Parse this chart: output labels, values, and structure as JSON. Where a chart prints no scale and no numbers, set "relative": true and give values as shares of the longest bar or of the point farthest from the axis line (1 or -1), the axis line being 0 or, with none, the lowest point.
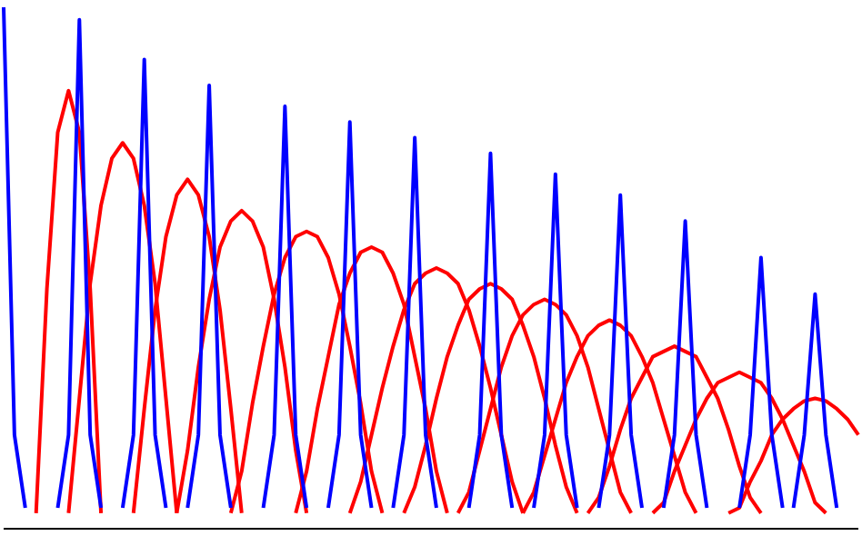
{
  "chart_data": {
    "type": "line",
    "relative": true,
    "grid": false,
    "legend": false,
    "categories": [
      null,
      null,
      null,
      null,
      null,
      null,
      null,
      null,
      null,
      null,
      null,
      null,
      null,
      null,
      null,
      null,
      null,
      null,
      null,
      null,
      null,
      null,
      null,
      null,
      null,
      null,
      null,
      null,
      null,
      null,
      null,
      null,
      null,
      null,
      null,
      null,
      null,
      null,
      null,
      null,
      null,
      null,
      null,
      null,
      null,
      null,
      null,
      null,
      null,
      null,
      null,
      null,
      null,
      null,
      null,
      null,
      null,
      null,
      null,
      null,
      null,
      null,
      null,
      null,
      null,
      null,
      null,
      null,
      null,
      null,
      null,
      null,
      null,
      null,
      null,
      null,
      null,
      null,
      null,
      null
    ],
    "series": [
      {
        "color": "#ff0000",
        "values": [
          null,
          null,
          null,
          0.03,
          0.46,
          0.76,
          0.84,
          0.76,
          0.46,
          0.03,
          null,
          null,
          null,
          null,
          null,
          null,
          null,
          null,
          null,
          null,
          null,
          null,
          null,
          null,
          null,
          null,
          null,
          null,
          null,
          null,
          null,
          null,
          null,
          null,
          null,
          null,
          null,
          null,
          null,
          null,
          null,
          null,
          null,
          null,
          null,
          null,
          null,
          null,
          null,
          null,
          null,
          null,
          null,
          null,
          null,
          null,
          null,
          null,
          null,
          null,
          null,
          null,
          null,
          null,
          null,
          null,
          null,
          null,
          null,
          null,
          null,
          null,
          null,
          null,
          null,
          null,
          null,
          null,
          null,
          null
        ]
      },
      {
        "color": "#ff0000",
        "values": [
          null,
          null,
          null,
          null,
          null,
          null,
          0.03,
          0.25,
          0.47,
          0.62,
          0.71,
          0.74,
          0.71,
          0.62,
          0.47,
          0.25,
          0.03,
          null,
          null,
          null,
          null,
          null,
          null,
          null,
          null,
          null,
          null,
          null,
          null,
          null,
          null,
          null,
          null,
          null,
          null,
          null,
          null,
          null,
          null,
          null,
          null,
          null,
          null,
          null,
          null,
          null,
          null,
          null,
          null,
          null,
          null,
          null,
          null,
          null,
          null,
          null,
          null,
          null,
          null,
          null,
          null,
          null,
          null,
          null,
          null,
          null,
          null,
          null,
          null,
          null,
          null,
          null,
          null,
          null,
          null,
          null,
          null,
          null,
          null,
          null
        ]
      },
      {
        "color": "#ff0000",
        "values": [
          null,
          null,
          null,
          null,
          null,
          null,
          null,
          null,
          null,
          null,
          null,
          null,
          0.03,
          0.23,
          0.42,
          0.56,
          0.64,
          0.67,
          0.64,
          0.56,
          0.42,
          0.23,
          0.03,
          null,
          null,
          null,
          null,
          null,
          null,
          null,
          null,
          null,
          null,
          null,
          null,
          null,
          null,
          null,
          null,
          null,
          null,
          null,
          null,
          null,
          null,
          null,
          null,
          null,
          null,
          null,
          null,
          null,
          null,
          null,
          null,
          null,
          null,
          null,
          null,
          null,
          null,
          null,
          null,
          null,
          null,
          null,
          null,
          null,
          null,
          null,
          null,
          null,
          null,
          null,
          null,
          null,
          null,
          null,
          null,
          null
        ]
      },
      {
        "color": "#ff0000",
        "values": [
          null,
          null,
          null,
          null,
          null,
          null,
          null,
          null,
          null,
          null,
          null,
          null,
          null,
          null,
          null,
          null,
          0.03,
          0.15,
          0.31,
          0.44,
          0.54,
          0.59,
          0.61,
          0.59,
          0.54,
          0.44,
          0.31,
          0.15,
          0.03,
          null,
          null,
          null,
          null,
          null,
          null,
          null,
          null,
          null,
          null,
          null,
          null,
          null,
          null,
          null,
          null,
          null,
          null,
          null,
          null,
          null,
          null,
          null,
          null,
          null,
          null,
          null,
          null,
          null,
          null,
          null,
          null,
          null,
          null,
          null,
          null,
          null,
          null,
          null,
          null,
          null,
          null,
          null,
          null,
          null,
          null,
          null,
          null,
          null,
          null,
          null
        ]
      },
      {
        "color": "#ff0000",
        "values": [
          null,
          null,
          null,
          null,
          null,
          null,
          null,
          null,
          null,
          null,
          null,
          null,
          null,
          null,
          null,
          null,
          null,
          null,
          null,
          null,
          null,
          0.03,
          0.11,
          0.24,
          0.35,
          0.45,
          0.52,
          0.56,
          0.57,
          0.56,
          0.52,
          0.45,
          0.35,
          0.24,
          0.11,
          0.03,
          null,
          null,
          null,
          null,
          null,
          null,
          null,
          null,
          null,
          null,
          null,
          null,
          null,
          null,
          null,
          null,
          null,
          null,
          null,
          null,
          null,
          null,
          null,
          null,
          null,
          null,
          null,
          null,
          null,
          null,
          null,
          null,
          null,
          null,
          null,
          null,
          null,
          null,
          null,
          null,
          null,
          null,
          null,
          null
        ]
      },
      {
        "color": "#ff0000",
        "values": [
          null,
          null,
          null,
          null,
          null,
          null,
          null,
          null,
          null,
          null,
          null,
          null,
          null,
          null,
          null,
          null,
          null,
          null,
          null,
          null,
          null,
          null,
          null,
          null,
          null,
          null,
          null,
          0.03,
          0.11,
          0.23,
          0.33,
          0.43,
          0.49,
          0.53,
          0.54,
          0.53,
          0.49,
          0.43,
          0.33,
          0.23,
          0.11,
          0.03,
          null,
          null,
          null,
          null,
          null,
          null,
          null,
          null,
          null,
          null,
          null,
          null,
          null,
          null,
          null,
          null,
          null,
          null,
          null,
          null,
          null,
          null,
          null,
          null,
          null,
          null,
          null,
          null,
          null,
          null,
          null,
          null,
          null,
          null,
          null,
          null,
          null,
          null
        ]
      },
      {
        "color": "#ff0000",
        "values": [
          null,
          null,
          null,
          null,
          null,
          null,
          null,
          null,
          null,
          null,
          null,
          null,
          null,
          null,
          null,
          null,
          null,
          null,
          null,
          null,
          null,
          null,
          null,
          null,
          null,
          null,
          null,
          null,
          null,
          null,
          null,
          null,
          0.03,
          0.09,
          0.18,
          0.27,
          0.35,
          0.42,
          0.47,
          0.49,
          0.5,
          0.49,
          0.47,
          0.42,
          0.35,
          0.27,
          0.18,
          0.09,
          0.03,
          null,
          null,
          null,
          null,
          null,
          null,
          null,
          null,
          null,
          null,
          null,
          null,
          null,
          null,
          null,
          null,
          null,
          null,
          null,
          null,
          null,
          null,
          null,
          null,
          null,
          null,
          null,
          null,
          null,
          null,
          null
        ]
      },
      {
        "color": "#ff0000",
        "values": [
          null,
          null,
          null,
          null,
          null,
          null,
          null,
          null,
          null,
          null,
          null,
          null,
          null,
          null,
          null,
          null,
          null,
          null,
          null,
          null,
          null,
          null,
          null,
          null,
          null,
          null,
          null,
          null,
          null,
          null,
          null,
          null,
          null,
          null,
          null,
          null,
          null,
          0.03,
          0.08,
          0.16,
          0.25,
          0.33,
          0.39,
          0.44,
          0.46,
          0.47,
          0.46,
          0.44,
          0.39,
          0.33,
          0.25,
          0.16,
          0.08,
          0.03,
          null,
          null,
          null,
          null,
          null,
          null,
          null,
          null,
          null,
          null,
          null,
          null,
          null,
          null,
          null,
          null,
          null,
          null,
          null,
          null,
          null,
          null,
          null,
          null,
          null,
          null
        ]
      },
      {
        "color": "#ff0000",
        "values": [
          null,
          null,
          null,
          null,
          null,
          null,
          null,
          null,
          null,
          null,
          null,
          null,
          null,
          null,
          null,
          null,
          null,
          null,
          null,
          null,
          null,
          null,
          null,
          null,
          null,
          null,
          null,
          null,
          null,
          null,
          null,
          null,
          null,
          null,
          null,
          null,
          null,
          null,
          null,
          null,
          null,
          null,
          0.03,
          0.07,
          0.15,
          0.23,
          0.31,
          0.37,
          0.41,
          0.43,
          0.44,
          0.43,
          0.41,
          0.37,
          0.31,
          0.23,
          0.15,
          0.07,
          0.03,
          null,
          null,
          null,
          null,
          null,
          null,
          null,
          null,
          null,
          null,
          null,
          null,
          null,
          null,
          null,
          null,
          null,
          null,
          null,
          null,
          null
        ]
      },
      {
        "color": "#ff0000",
        "values": [
          null,
          null,
          null,
          null,
          null,
          null,
          null,
          null,
          null,
          null,
          null,
          null,
          null,
          null,
          null,
          null,
          null,
          null,
          null,
          null,
          null,
          null,
          null,
          null,
          null,
          null,
          null,
          null,
          null,
          null,
          null,
          null,
          null,
          null,
          null,
          null,
          null,
          null,
          null,
          null,
          null,
          null,
          null,
          null,
          null,
          null,
          null,
          null,
          0.03,
          0.07,
          0.14,
          0.21,
          0.28,
          0.33,
          0.37,
          0.39,
          0.4,
          0.39,
          0.37,
          0.33,
          0.28,
          0.21,
          0.14,
          0.07,
          0.03,
          null,
          null,
          null,
          null,
          null,
          null,
          null,
          null,
          null,
          null,
          null,
          null,
          null,
          null,
          null
        ]
      },
      {
        "color": "#ff0000",
        "values": [
          null,
          null,
          null,
          null,
          null,
          null,
          null,
          null,
          null,
          null,
          null,
          null,
          null,
          null,
          null,
          null,
          null,
          null,
          null,
          null,
          null,
          null,
          null,
          null,
          null,
          null,
          null,
          null,
          null,
          null,
          null,
          null,
          null,
          null,
          null,
          null,
          null,
          null,
          null,
          null,
          null,
          null,
          null,
          null,
          null,
          null,
          null,
          null,
          null,
          null,
          null,
          null,
          null,
          null,
          0.03,
          0.06,
          0.12,
          0.19,
          0.25,
          0.29,
          0.33,
          0.34,
          0.35,
          0.34,
          0.33,
          0.29,
          0.25,
          0.19,
          0.12,
          0.06,
          0.03,
          null,
          null,
          null,
          null,
          null,
          null,
          null,
          null,
          null
        ]
      },
      {
        "color": "#ff0000",
        "values": [
          null,
          null,
          null,
          null,
          null,
          null,
          null,
          null,
          null,
          null,
          null,
          null,
          null,
          null,
          null,
          null,
          null,
          null,
          null,
          null,
          null,
          null,
          null,
          null,
          null,
          null,
          null,
          null,
          null,
          null,
          null,
          null,
          null,
          null,
          null,
          null,
          null,
          null,
          null,
          null,
          null,
          null,
          null,
          null,
          null,
          null,
          null,
          null,
          null,
          null,
          null,
          null,
          null,
          null,
          null,
          null,
          null,
          null,
          null,
          null,
          0.03,
          0.05,
          0.11,
          0.16,
          0.21,
          0.25,
          0.28,
          0.29,
          0.3,
          0.29,
          0.28,
          0.25,
          0.21,
          0.16,
          0.11,
          0.05,
          0.03,
          null,
          null,
          null
        ]
      },
      {
        "color": "#ff0000",
        "values": [
          null,
          null,
          null,
          null,
          null,
          null,
          null,
          null,
          null,
          null,
          null,
          null,
          null,
          null,
          null,
          null,
          null,
          null,
          null,
          null,
          null,
          null,
          null,
          null,
          null,
          null,
          null,
          null,
          null,
          null,
          null,
          null,
          null,
          null,
          null,
          null,
          null,
          null,
          null,
          null,
          null,
          null,
          null,
          null,
          null,
          null,
          null,
          null,
          null,
          null,
          null,
          null,
          null,
          null,
          null,
          null,
          null,
          null,
          null,
          null,
          null,
          null,
          null,
          null,
          null,
          null,
          null,
          0.03,
          0.04,
          0.09,
          0.13,
          0.18,
          0.21,
          0.23,
          0.245,
          0.25,
          0.245,
          0.23,
          0.21,
          0.18
        ]
      },
      {
        "color": "#0000ff",
        "values": [
          1.0,
          0.18,
          0.04,
          null,
          null,
          null,
          null,
          null,
          null,
          null,
          null,
          null,
          null,
          null,
          null,
          null,
          null,
          null,
          null,
          null,
          null,
          null,
          null,
          null,
          null,
          null,
          null,
          null,
          null,
          null,
          null,
          null,
          null,
          null,
          null,
          null,
          null,
          null,
          null,
          null,
          null,
          null,
          null,
          null,
          null,
          null,
          null,
          null,
          null,
          null,
          null,
          null,
          null,
          null,
          null,
          null,
          null,
          null,
          null,
          null,
          null,
          null,
          null,
          null,
          null,
          null,
          null,
          null,
          null,
          null,
          null,
          null,
          null,
          null,
          null,
          null,
          null,
          null,
          null,
          null
        ]
      },
      {
        "color": "#0000ff",
        "values": [
          null,
          null,
          null,
          null,
          null,
          0.04,
          0.18,
          0.976,
          0.18,
          0.04,
          null,
          null,
          null,
          null,
          null,
          null,
          null,
          null,
          null,
          null,
          null,
          null,
          null,
          null,
          null,
          null,
          null,
          null,
          null,
          null,
          null,
          null,
          null,
          null,
          null,
          null,
          null,
          null,
          null,
          null,
          null,
          null,
          null,
          null,
          null,
          null,
          null,
          null,
          null,
          null,
          null,
          null,
          null,
          null,
          null,
          null,
          null,
          null,
          null,
          null,
          null,
          null,
          null,
          null,
          null,
          null,
          null,
          null,
          null,
          null,
          null,
          null,
          null,
          null,
          null,
          null,
          null,
          null,
          null,
          null
        ]
      },
      {
        "color": "#0000ff",
        "values": [
          null,
          null,
          null,
          null,
          null,
          null,
          null,
          null,
          null,
          null,
          null,
          0.04,
          0.18,
          0.9,
          0.18,
          0.04,
          null,
          null,
          null,
          null,
          null,
          null,
          null,
          null,
          null,
          null,
          null,
          null,
          null,
          null,
          null,
          null,
          null,
          null,
          null,
          null,
          null,
          null,
          null,
          null,
          null,
          null,
          null,
          null,
          null,
          null,
          null,
          null,
          null,
          null,
          null,
          null,
          null,
          null,
          null,
          null,
          null,
          null,
          null,
          null,
          null,
          null,
          null,
          null,
          null,
          null,
          null,
          null,
          null,
          null,
          null,
          null,
          null,
          null,
          null,
          null,
          null,
          null,
          null,
          null
        ]
      },
      {
        "color": "#0000ff",
        "values": [
          null,
          null,
          null,
          null,
          null,
          null,
          null,
          null,
          null,
          null,
          null,
          null,
          null,
          null,
          null,
          null,
          null,
          0.04,
          0.18,
          0.85,
          0.18,
          0.04,
          null,
          null,
          null,
          null,
          null,
          null,
          null,
          null,
          null,
          null,
          null,
          null,
          null,
          null,
          null,
          null,
          null,
          null,
          null,
          null,
          null,
          null,
          null,
          null,
          null,
          null,
          null,
          null,
          null,
          null,
          null,
          null,
          null,
          null,
          null,
          null,
          null,
          null,
          null,
          null,
          null,
          null,
          null,
          null,
          null,
          null,
          null,
          null,
          null,
          null,
          null,
          null,
          null,
          null,
          null,
          null,
          null,
          null
        ]
      },
      {
        "color": "#0000ff",
        "values": [
          null,
          null,
          null,
          null,
          null,
          null,
          null,
          null,
          null,
          null,
          null,
          null,
          null,
          null,
          null,
          null,
          null,
          null,
          null,
          null,
          null,
          null,
          null,
          null,
          0.04,
          0.18,
          0.81,
          0.18,
          0.04,
          null,
          null,
          null,
          null,
          null,
          null,
          null,
          null,
          null,
          null,
          null,
          null,
          null,
          null,
          null,
          null,
          null,
          null,
          null,
          null,
          null,
          null,
          null,
          null,
          null,
          null,
          null,
          null,
          null,
          null,
          null,
          null,
          null,
          null,
          null,
          null,
          null,
          null,
          null,
          null,
          null,
          null,
          null,
          null,
          null,
          null,
          null,
          null,
          null,
          null,
          null
        ]
      },
      {
        "color": "#0000ff",
        "values": [
          null,
          null,
          null,
          null,
          null,
          null,
          null,
          null,
          null,
          null,
          null,
          null,
          null,
          null,
          null,
          null,
          null,
          null,
          null,
          null,
          null,
          null,
          null,
          null,
          null,
          null,
          null,
          null,
          null,
          null,
          0.04,
          0.18,
          0.78,
          0.18,
          0.04,
          null,
          null,
          null,
          null,
          null,
          null,
          null,
          null,
          null,
          null,
          null,
          null,
          null,
          null,
          null,
          null,
          null,
          null,
          null,
          null,
          null,
          null,
          null,
          null,
          null,
          null,
          null,
          null,
          null,
          null,
          null,
          null,
          null,
          null,
          null,
          null,
          null,
          null,
          null,
          null,
          null,
          null,
          null,
          null,
          null
        ]
      },
      {
        "color": "#0000ff",
        "values": [
          null,
          null,
          null,
          null,
          null,
          null,
          null,
          null,
          null,
          null,
          null,
          null,
          null,
          null,
          null,
          null,
          null,
          null,
          null,
          null,
          null,
          null,
          null,
          null,
          null,
          null,
          null,
          null,
          null,
          null,
          null,
          null,
          null,
          null,
          null,
          null,
          0.04,
          0.18,
          0.75,
          0.18,
          0.04,
          null,
          null,
          null,
          null,
          null,
          null,
          null,
          null,
          null,
          null,
          null,
          null,
          null,
          null,
          null,
          null,
          null,
          null,
          null,
          null,
          null,
          null,
          null,
          null,
          null,
          null,
          null,
          null,
          null,
          null,
          null,
          null,
          null,
          null,
          null,
          null,
          null,
          null,
          null
        ]
      },
      {
        "color": "#0000ff",
        "values": [
          null,
          null,
          null,
          null,
          null,
          null,
          null,
          null,
          null,
          null,
          null,
          null,
          null,
          null,
          null,
          null,
          null,
          null,
          null,
          null,
          null,
          null,
          null,
          null,
          null,
          null,
          null,
          null,
          null,
          null,
          null,
          null,
          null,
          null,
          null,
          null,
          null,
          null,
          null,
          null,
          null,
          null,
          null,
          0.04,
          0.18,
          0.72,
          0.18,
          0.04,
          null,
          null,
          null,
          null,
          null,
          null,
          null,
          null,
          null,
          null,
          null,
          null,
          null,
          null,
          null,
          null,
          null,
          null,
          null,
          null,
          null,
          null,
          null,
          null,
          null,
          null,
          null,
          null,
          null,
          null,
          null,
          null
        ]
      },
      {
        "color": "#0000ff",
        "values": [
          null,
          null,
          null,
          null,
          null,
          null,
          null,
          null,
          null,
          null,
          null,
          null,
          null,
          null,
          null,
          null,
          null,
          null,
          null,
          null,
          null,
          null,
          null,
          null,
          null,
          null,
          null,
          null,
          null,
          null,
          null,
          null,
          null,
          null,
          null,
          null,
          null,
          null,
          null,
          null,
          null,
          null,
          null,
          null,
          null,
          null,
          null,
          null,
          null,
          0.04,
          0.18,
          0.68,
          0.18,
          0.04,
          null,
          null,
          null,
          null,
          null,
          null,
          null,
          null,
          null,
          null,
          null,
          null,
          null,
          null,
          null,
          null,
          null,
          null,
          null,
          null,
          null,
          null,
          null,
          null,
          null,
          null
        ]
      },
      {
        "color": "#0000ff",
        "values": [
          null,
          null,
          null,
          null,
          null,
          null,
          null,
          null,
          null,
          null,
          null,
          null,
          null,
          null,
          null,
          null,
          null,
          null,
          null,
          null,
          null,
          null,
          null,
          null,
          null,
          null,
          null,
          null,
          null,
          null,
          null,
          null,
          null,
          null,
          null,
          null,
          null,
          null,
          null,
          null,
          null,
          null,
          null,
          null,
          null,
          null,
          null,
          null,
          null,
          null,
          null,
          null,
          null,
          null,
          null,
          0.04,
          0.18,
          0.64,
          0.18,
          0.04,
          null,
          null,
          null,
          null,
          null,
          null,
          null,
          null,
          null,
          null,
          null,
          null,
          null,
          null,
          null,
          null,
          null,
          null,
          null,
          null
        ]
      },
      {
        "color": "#0000ff",
        "values": [
          null,
          null,
          null,
          null,
          null,
          null,
          null,
          null,
          null,
          null,
          null,
          null,
          null,
          null,
          null,
          null,
          null,
          null,
          null,
          null,
          null,
          null,
          null,
          null,
          null,
          null,
          null,
          null,
          null,
          null,
          null,
          null,
          null,
          null,
          null,
          null,
          null,
          null,
          null,
          null,
          null,
          null,
          null,
          null,
          null,
          null,
          null,
          null,
          null,
          null,
          null,
          null,
          null,
          null,
          null,
          null,
          null,
          null,
          null,
          null,
          null,
          0.04,
          0.18,
          0.59,
          0.18,
          0.04,
          null,
          null,
          null,
          null,
          null,
          null,
          null,
          null,
          null,
          null,
          null,
          null,
          null,
          null
        ]
      },
      {
        "color": "#0000ff",
        "values": [
          null,
          null,
          null,
          null,
          null,
          null,
          null,
          null,
          null,
          null,
          null,
          null,
          null,
          null,
          null,
          null,
          null,
          null,
          null,
          null,
          null,
          null,
          null,
          null,
          null,
          null,
          null,
          null,
          null,
          null,
          null,
          null,
          null,
          null,
          null,
          null,
          null,
          null,
          null,
          null,
          null,
          null,
          null,
          null,
          null,
          null,
          null,
          null,
          null,
          null,
          null,
          null,
          null,
          null,
          null,
          null,
          null,
          null,
          null,
          null,
          null,
          null,
          null,
          null,
          null,
          null,
          null,
          null,
          0.04,
          0.18,
          0.52,
          0.18,
          0.04,
          null,
          null,
          null,
          null,
          null,
          null,
          null
        ]
      },
      {
        "color": "#0000ff",
        "values": [
          null,
          null,
          null,
          null,
          null,
          null,
          null,
          null,
          null,
          null,
          null,
          null,
          null,
          null,
          null,
          null,
          null,
          null,
          null,
          null,
          null,
          null,
          null,
          null,
          null,
          null,
          null,
          null,
          null,
          null,
          null,
          null,
          null,
          null,
          null,
          null,
          null,
          null,
          null,
          null,
          null,
          null,
          null,
          null,
          null,
          null,
          null,
          null,
          null,
          null,
          null,
          null,
          null,
          null,
          null,
          null,
          null,
          null,
          null,
          null,
          null,
          null,
          null,
          null,
          null,
          null,
          null,
          null,
          null,
          null,
          null,
          null,
          null,
          0.04,
          0.18,
          0.45,
          0.18,
          0.04,
          null,
          null
        ]
      }
    ]
  }
}
